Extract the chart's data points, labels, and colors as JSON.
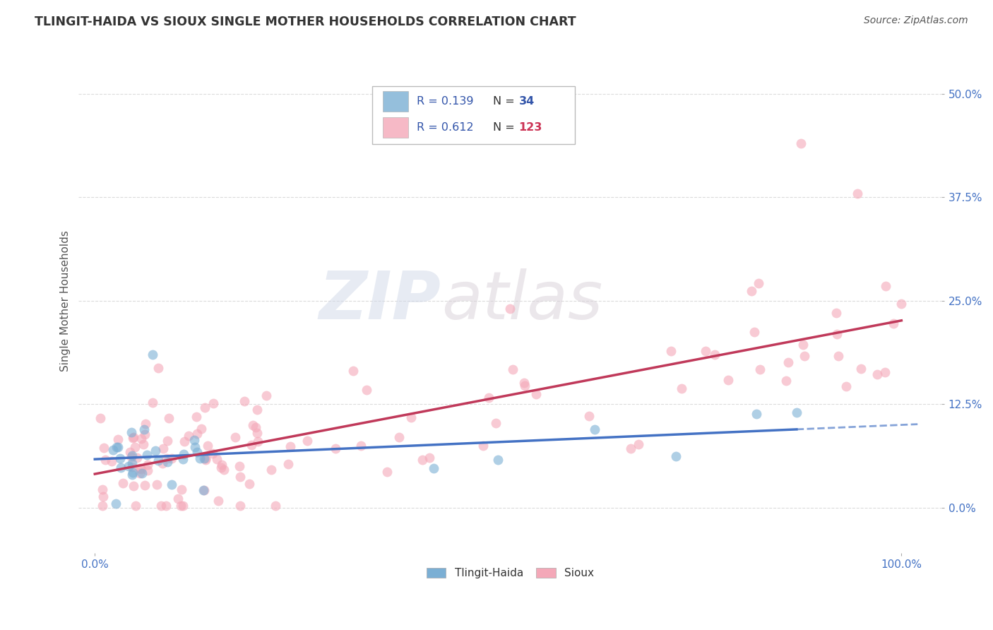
{
  "title": "TLINGIT-HAIDA VS SIOUX SINGLE MOTHER HOUSEHOLDS CORRELATION CHART",
  "source_text": "Source: ZipAtlas.com",
  "ylabel": "Single Mother Households",
  "background_color": "#ffffff",
  "plot_bg_color": "#ffffff",
  "grid_color": "#cccccc",
  "tlingit_color": "#7bafd4",
  "sioux_color": "#f4a8b8",
  "tlingit_line_color": "#4472c4",
  "sioux_line_color": "#c0395a",
  "tlingit_R": 0.139,
  "tlingit_N": 34,
  "sioux_R": 0.612,
  "sioux_N": 123,
  "legend_text_color": "#3355aa",
  "legend_N_sioux_color": "#cc3355",
  "ytick_labels": [
    "0.0%",
    "12.5%",
    "25.0%",
    "37.5%",
    "50.0%"
  ],
  "ytick_values": [
    0.0,
    0.125,
    0.25,
    0.375,
    0.5
  ],
  "xmin": -0.02,
  "xmax": 1.05,
  "ymin": -0.055,
  "ymax": 0.555,
  "tlingit_seed": 42,
  "sioux_seed": 7,
  "watermark": "ZIPatlas"
}
